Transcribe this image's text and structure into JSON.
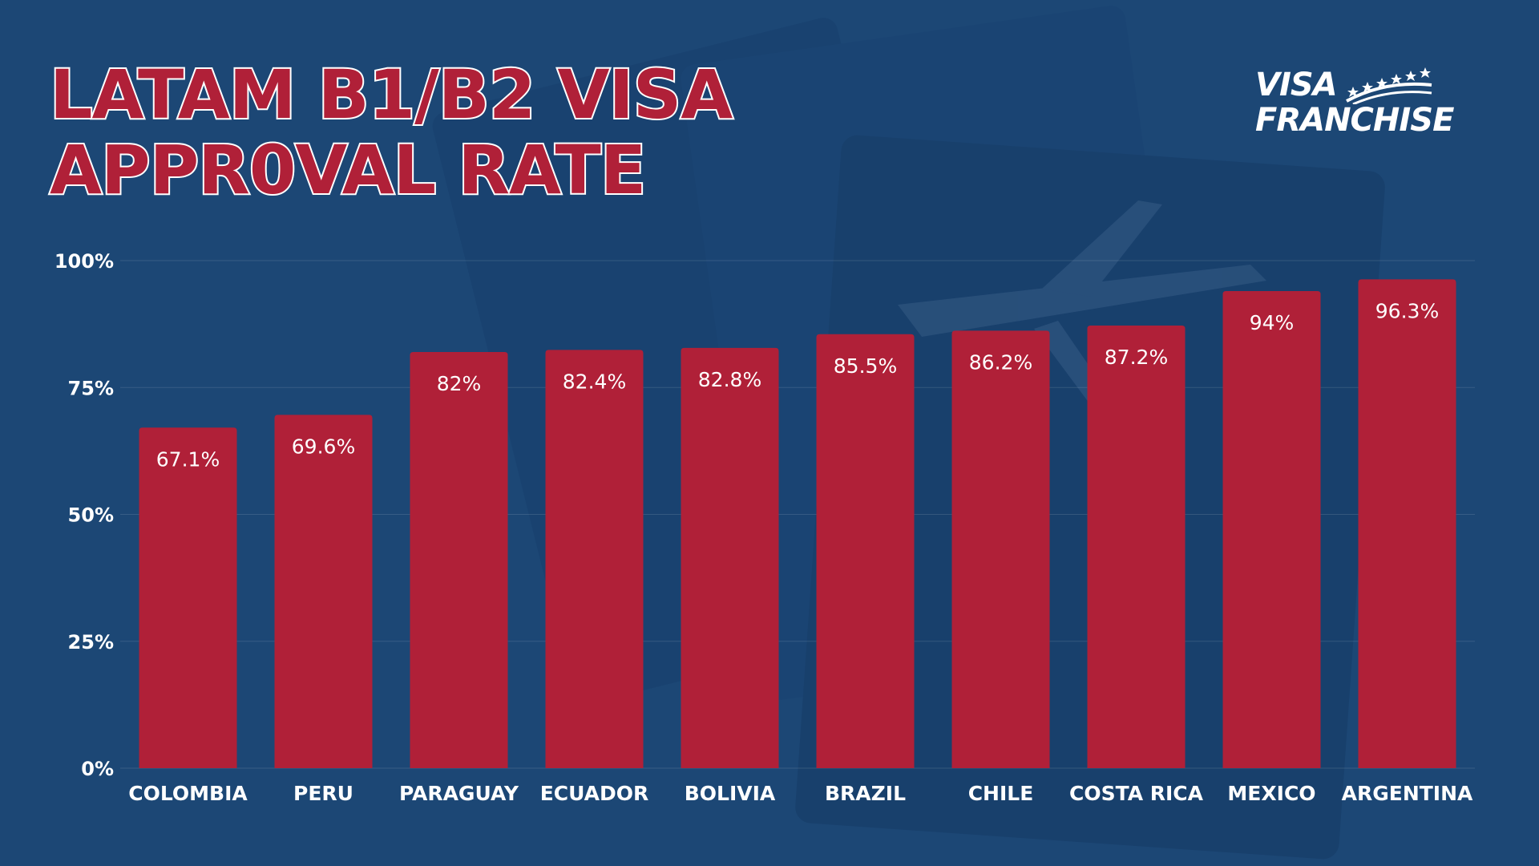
{
  "header": {
    "title_line1": "LATAM B1/B2 VISA",
    "title_line2": "APPR0VAL RATE"
  },
  "logo": {
    "line1": "VISA",
    "line2": "FRANCHISE"
  },
  "colors": {
    "background": "#1d4776",
    "bar": "#b02038",
    "title_fill": "#b02038",
    "title_outline": "#ffffff",
    "text": "#ffffff"
  },
  "chart_data": {
    "type": "bar",
    "title": "LATAM B1/B2 VISA APPR0VAL RATE",
    "xlabel": "",
    "ylabel": "",
    "categories": [
      "COLOMBIA",
      "PERU",
      "PARAGUAY",
      "ECUADOR",
      "BOLIVIA",
      "BRAZIL",
      "CHILE",
      "COSTA RICA",
      "MEXICO",
      "ARGENTINA"
    ],
    "values": [
      67.1,
      69.6,
      82,
      82.4,
      82.8,
      85.5,
      86.2,
      87.2,
      94,
      96.3
    ],
    "data_labels": [
      "67.1%",
      "69.6%",
      "82%",
      "82.4%",
      "82.8%",
      "85.5%",
      "86.2%",
      "87.2%",
      "94%",
      "96.3%"
    ],
    "ylim": [
      0,
      100
    ],
    "yticks": [
      0,
      25,
      50,
      75,
      100
    ],
    "ytick_labels": [
      "0%",
      "25%",
      "50%",
      "75%",
      "100%"
    ],
    "grid": true,
    "legend": "none"
  }
}
